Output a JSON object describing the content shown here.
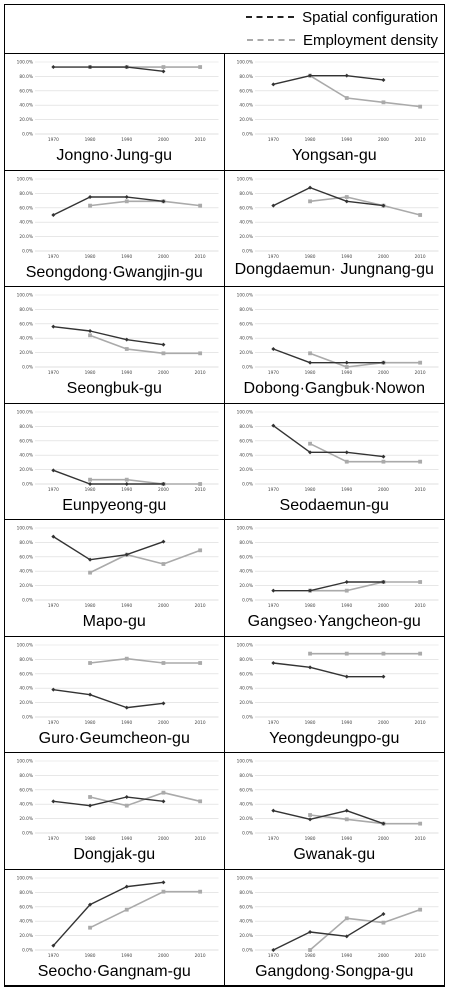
{
  "legend": {
    "series1": "Spatial configuration",
    "series2": "Employment density"
  },
  "colors": {
    "spatial": "#333333",
    "employment": "#aaaaaa",
    "grid": "#d9d9d9"
  },
  "chart_data": [
    {
      "type": "line",
      "title": "Jongno·Jung-gu",
      "categories": [
        "1970",
        "1980",
        "1990",
        "2000",
        "2010"
      ],
      "yticks": [
        "0.0%",
        "20.0%",
        "40.0%",
        "60.0%",
        "80.0%",
        "100.0%"
      ],
      "ylim": [
        0,
        100
      ],
      "series": [
        {
          "name": "Spatial configuration",
          "values": [
            93,
            93,
            93,
            87,
            null
          ]
        },
        {
          "name": "Employment density",
          "values": [
            null,
            93,
            93,
            93,
            93
          ]
        }
      ]
    },
    {
      "type": "line",
      "title": "Yongsan-gu",
      "categories": [
        "1970",
        "1980",
        "1990",
        "2000",
        "2010"
      ],
      "yticks": [
        "0.0%",
        "20.0%",
        "40.0%",
        "60.0%",
        "80.0%",
        "100.0%"
      ],
      "ylim": [
        0,
        100
      ],
      "series": [
        {
          "name": "Spatial configuration",
          "values": [
            69,
            81,
            81,
            75,
            null
          ]
        },
        {
          "name": "Employment density",
          "values": [
            null,
            81,
            50,
            44,
            38
          ]
        }
      ]
    },
    {
      "type": "line",
      "title": "Seongdong·Gwangjin-gu",
      "categories": [
        "1970",
        "1980",
        "1990",
        "2000",
        "2010"
      ],
      "yticks": [
        "0.0%",
        "20.0%",
        "40.0%",
        "60.0%",
        "80.0%",
        "100.0%"
      ],
      "ylim": [
        0,
        100
      ],
      "series": [
        {
          "name": "Spatial configuration",
          "values": [
            50,
            75,
            75,
            69,
            null
          ]
        },
        {
          "name": "Employment density",
          "values": [
            null,
            63,
            69,
            69,
            63
          ]
        }
      ]
    },
    {
      "type": "line",
      "title": "Dongdaemun· Jungnang-gu",
      "categories": [
        "1970",
        "1980",
        "1990",
        "2000",
        "2010"
      ],
      "yticks": [
        "0.0%",
        "20.0%",
        "40.0%",
        "60.0%",
        "80.0%",
        "100.0%"
      ],
      "ylim": [
        0,
        100
      ],
      "series": [
        {
          "name": "Spatial configuration",
          "values": [
            63,
            88,
            69,
            63,
            null
          ]
        },
        {
          "name": "Employment density",
          "values": [
            null,
            69,
            75,
            63,
            50
          ]
        }
      ]
    },
    {
      "type": "line",
      "title": "Seongbuk-gu",
      "categories": [
        "1970",
        "1980",
        "1990",
        "2000",
        "2010"
      ],
      "yticks": [
        "0.0%",
        "20.0%",
        "40.0%",
        "60.0%",
        "80.0%",
        "100.0%"
      ],
      "ylim": [
        0,
        100
      ],
      "series": [
        {
          "name": "Spatial configuration",
          "values": [
            56,
            50,
            38,
            31,
            null
          ]
        },
        {
          "name": "Employment density",
          "values": [
            null,
            44,
            25,
            19,
            19
          ]
        }
      ]
    },
    {
      "type": "line",
      "title": "Dobong·Gangbuk·Nowon",
      "categories": [
        "1970",
        "1980",
        "1990",
        "2000",
        "2010"
      ],
      "yticks": [
        "0.0%",
        "20.0%",
        "40.0%",
        "60.0%",
        "80.0%",
        "100.0%"
      ],
      "ylim": [
        0,
        100
      ],
      "series": [
        {
          "name": "Spatial configuration",
          "values": [
            25,
            6,
            6,
            6,
            null
          ]
        },
        {
          "name": "Employment density",
          "values": [
            null,
            19,
            0,
            6,
            6
          ]
        }
      ]
    },
    {
      "type": "line",
      "title": "Eunpyeong-gu",
      "categories": [
        "1970",
        "1980",
        "1990",
        "2000",
        "2010"
      ],
      "yticks": [
        "0.0%",
        "20.0%",
        "40.0%",
        "60.0%",
        "80.0%",
        "100.0%"
      ],
      "ylim": [
        0,
        100
      ],
      "series": [
        {
          "name": "Spatial configuration",
          "values": [
            19,
            0,
            0,
            0,
            null
          ]
        },
        {
          "name": "Employment density",
          "values": [
            null,
            6,
            6,
            0,
            0
          ]
        }
      ]
    },
    {
      "type": "line",
      "title": "Seodaemun-gu",
      "categories": [
        "1970",
        "1980",
        "1990",
        "2000",
        "2010"
      ],
      "yticks": [
        "0.0%",
        "20.0%",
        "40.0%",
        "60.0%",
        "80.0%",
        "100.0%"
      ],
      "ylim": [
        0,
        100
      ],
      "series": [
        {
          "name": "Spatial configuration",
          "values": [
            81,
            44,
            44,
            38,
            null
          ]
        },
        {
          "name": "Employment density",
          "values": [
            null,
            56,
            31,
            31,
            31
          ]
        }
      ]
    },
    {
      "type": "line",
      "title": "Mapo-gu",
      "categories": [
        "1970",
        "1980",
        "1990",
        "2000",
        "2010"
      ],
      "yticks": [
        "0.0%",
        "20.0%",
        "40.0%",
        "60.0%",
        "80.0%",
        "100.0%"
      ],
      "ylim": [
        0,
        100
      ],
      "series": [
        {
          "name": "Spatial configuration",
          "values": [
            88,
            56,
            63,
            81,
            null
          ]
        },
        {
          "name": "Employment density",
          "values": [
            null,
            38,
            63,
            50,
            69
          ]
        }
      ]
    },
    {
      "type": "line",
      "title": "Gangseo·Yangcheon-gu",
      "categories": [
        "1970",
        "1980",
        "1990",
        "2000",
        "2010"
      ],
      "yticks": [
        "0.0%",
        "20.0%",
        "40.0%",
        "60.0%",
        "80.0%",
        "100.0%"
      ],
      "ylim": [
        0,
        100
      ],
      "series": [
        {
          "name": "Spatial configuration",
          "values": [
            13,
            13,
            25,
            25,
            null
          ]
        },
        {
          "name": "Employment density",
          "values": [
            null,
            13,
            13,
            25,
            25
          ]
        }
      ]
    },
    {
      "type": "line",
      "title": "Guro·Geumcheon-gu",
      "categories": [
        "1970",
        "1980",
        "1990",
        "2000",
        "2010"
      ],
      "yticks": [
        "0.0%",
        "20.0%",
        "40.0%",
        "60.0%",
        "80.0%",
        "100.0%"
      ],
      "ylim": [
        0,
        100
      ],
      "series": [
        {
          "name": "Spatial configuration",
          "values": [
            38,
            31,
            13,
            19,
            null
          ]
        },
        {
          "name": "Employment density",
          "values": [
            null,
            75,
            81,
            75,
            75
          ]
        }
      ]
    },
    {
      "type": "line",
      "title": "Yeongdeungpo-gu",
      "categories": [
        "1970",
        "1980",
        "1990",
        "2000",
        "2010"
      ],
      "yticks": [
        "0.0%",
        "20.0%",
        "40.0%",
        "60.0%",
        "80.0%",
        "100.0%"
      ],
      "ylim": [
        0,
        100
      ],
      "series": [
        {
          "name": "Spatial configuration",
          "values": [
            75,
            69,
            56,
            56,
            null
          ]
        },
        {
          "name": "Employment density",
          "values": [
            null,
            88,
            88,
            88,
            88
          ]
        }
      ]
    },
    {
      "type": "line",
      "title": "Dongjak-gu",
      "categories": [
        "1970",
        "1980",
        "1990",
        "2000",
        "2010"
      ],
      "yticks": [
        "0.0%",
        "20.0%",
        "40.0%",
        "60.0%",
        "80.0%",
        "100.0%"
      ],
      "ylim": [
        0,
        100
      ],
      "series": [
        {
          "name": "Spatial configuration",
          "values": [
            44,
            38,
            50,
            44,
            null
          ]
        },
        {
          "name": "Employment density",
          "values": [
            null,
            50,
            38,
            56,
            44
          ]
        }
      ]
    },
    {
      "type": "line",
      "title": "Gwanak-gu",
      "categories": [
        "1970",
        "1980",
        "1990",
        "2000",
        "2010"
      ],
      "yticks": [
        "0.0%",
        "20.0%",
        "40.0%",
        "60.0%",
        "80.0%",
        "100.0%"
      ],
      "ylim": [
        0,
        100
      ],
      "series": [
        {
          "name": "Spatial configuration",
          "values": [
            31,
            19,
            31,
            13,
            null
          ]
        },
        {
          "name": "Employment density",
          "values": [
            null,
            25,
            19,
            13,
            13
          ]
        }
      ]
    },
    {
      "type": "line",
      "title": "Seocho·Gangnam-gu",
      "categories": [
        "1970",
        "1980",
        "1990",
        "2000",
        "2010"
      ],
      "yticks": [
        "0.0%",
        "20.0%",
        "40.0%",
        "60.0%",
        "80.0%",
        "100.0%"
      ],
      "ylim": [
        0,
        100
      ],
      "series": [
        {
          "name": "Spatial configuration",
          "values": [
            6,
            63,
            88,
            94,
            null
          ]
        },
        {
          "name": "Employment density",
          "values": [
            null,
            31,
            56,
            81,
            81
          ]
        }
      ]
    },
    {
      "type": "line",
      "title": "Gangdong·Songpa-gu",
      "categories": [
        "1970",
        "1980",
        "1990",
        "2000",
        "2010"
      ],
      "yticks": [
        "0.0%",
        "20.0%",
        "40.0%",
        "60.0%",
        "80.0%",
        "100.0%"
      ],
      "ylim": [
        0,
        100
      ],
      "series": [
        {
          "name": "Spatial configuration",
          "values": [
            0,
            25,
            19,
            50,
            null
          ]
        },
        {
          "name": "Employment density",
          "values": [
            null,
            0,
            44,
            38,
            56
          ]
        }
      ]
    }
  ]
}
